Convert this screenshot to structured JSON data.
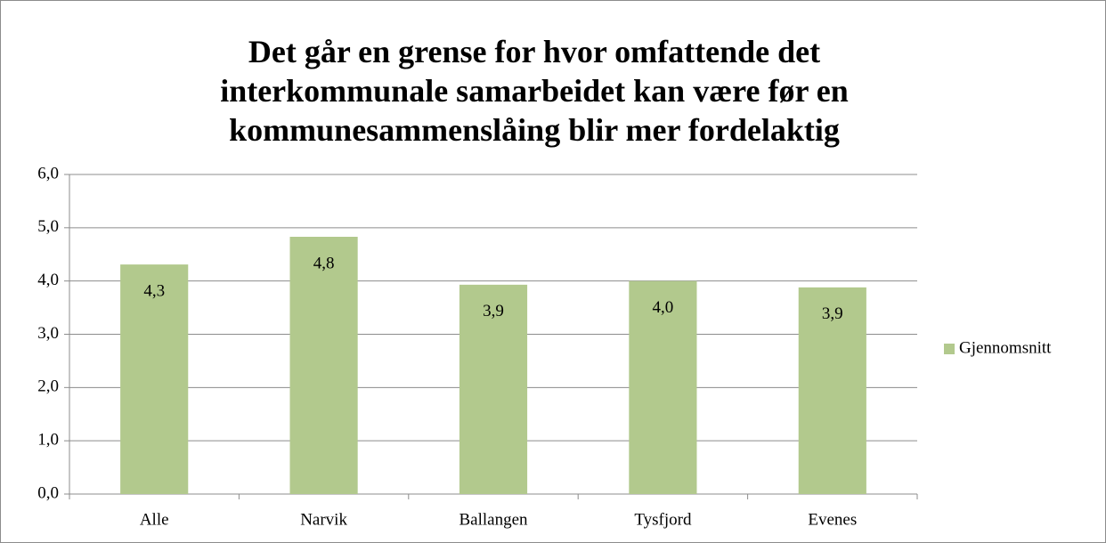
{
  "chart_data": {
    "type": "bar",
    "title": "Det går en grense for hvor omfattende det interkommunale samarbeidet kan være før en kommunesammenslåing blir mer fordelaktig",
    "categories": [
      "Alle",
      "Narvik",
      "Ballangen",
      "Tysfjord",
      "Evenes"
    ],
    "series": [
      {
        "name": "Gjennomsnitt",
        "color": "#b2c98d",
        "values": [
          4.31,
          4.83,
          3.93,
          4.0,
          3.88
        ],
        "value_labels": [
          "4,3",
          "4,8",
          "3,9",
          "4,0",
          "3,9"
        ]
      }
    ],
    "ylim": [
      0,
      6
    ],
    "yticks": [
      {
        "value": 0,
        "label": "0,0"
      },
      {
        "value": 1,
        "label": "1,0"
      },
      {
        "value": 2,
        "label": "2,0"
      },
      {
        "value": 3,
        "label": "3,0"
      },
      {
        "value": 4,
        "label": "4,0"
      },
      {
        "value": 5,
        "label": "5,0"
      },
      {
        "value": 6,
        "label": "6,0"
      }
    ],
    "grid": true,
    "legend": "right"
  }
}
